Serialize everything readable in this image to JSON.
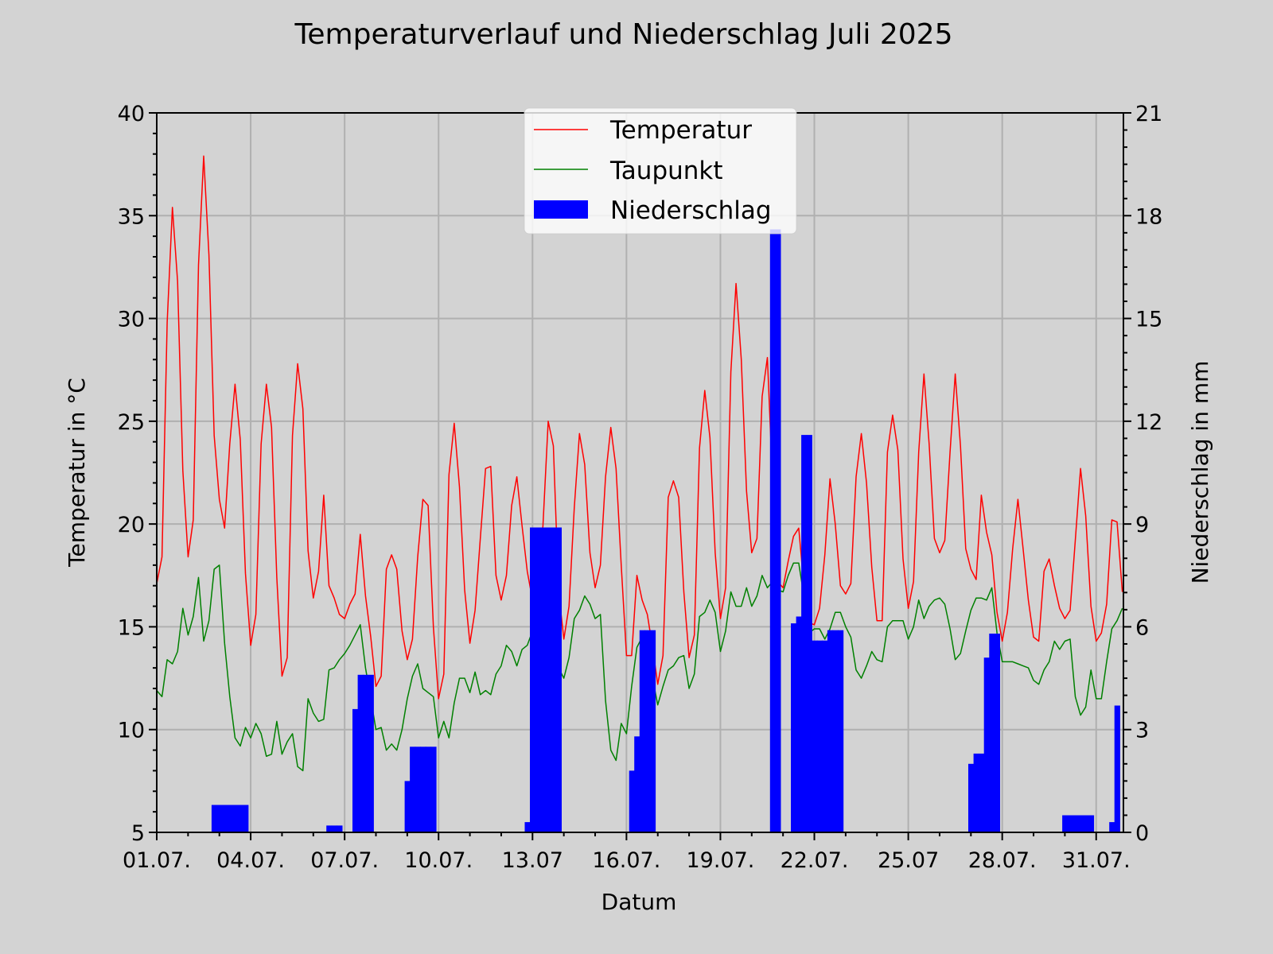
{
  "chart_data": {
    "type": "line+bar",
    "title": "Temperaturverlauf und Niederschlag Juli 2025",
    "xlabel": "Datum",
    "ylabel_left": "Temperatur in °C",
    "ylabel_right": "Niederschlag in mm",
    "x_unit": "days since 01.07.2025 00:00",
    "sample_interval_hours": 4,
    "xlim": [
      0,
      30.87
    ],
    "ylim_left": [
      5,
      40
    ],
    "ylim_right": [
      0,
      21
    ],
    "yticks_left": [
      5,
      10,
      15,
      20,
      25,
      30,
      35,
      40
    ],
    "yticks_right": [
      0,
      3,
      6,
      9,
      12,
      15,
      18,
      21
    ],
    "xticks": [
      {
        "day": 0,
        "label": "01.07."
      },
      {
        "day": 3,
        "label": "04.07."
      },
      {
        "day": 6,
        "label": "07.07."
      },
      {
        "day": 9,
        "label": "10.07."
      },
      {
        "day": 12,
        "label": "13.07"
      },
      {
        "day": 15,
        "label": "16.07."
      },
      {
        "day": 18,
        "label": "19.07."
      },
      {
        "day": 21,
        "label": "22.07."
      },
      {
        "day": 24,
        "label": "25.07"
      },
      {
        "day": 27,
        "label": "28.07."
      },
      {
        "day": 30,
        "label": "31.07."
      }
    ],
    "grid": true,
    "legend_position": "top-center",
    "colors": {
      "temperature": "#ff0000",
      "dewpoint": "#008000",
      "precipitation": "#0000ff",
      "background": "#d3d3d3",
      "grid": "#b0b0b0"
    },
    "series": [
      {
        "name": "Temperatur",
        "axis": "left",
        "kind": "line",
        "values": [
          17.1,
          18.4,
          29.8,
          35.4,
          31.8,
          22.6,
          18.4,
          20.2,
          32.6,
          37.9,
          33.1,
          24.3,
          21.2,
          19.8,
          23.9,
          26.8,
          24.1,
          17.6,
          14.1,
          15.6,
          23.9,
          26.8,
          24.7,
          17.4,
          12.6,
          13.5,
          24.3,
          27.8,
          25.6,
          18.7,
          16.4,
          17.7,
          21.4,
          17.0,
          16.4,
          15.6,
          15.4,
          16.1,
          16.6,
          19.5,
          16.5,
          14.5,
          12.1,
          12.6,
          17.8,
          18.5,
          17.8,
          14.8,
          13.4,
          14.4,
          18.4,
          21.2,
          20.9,
          15.0,
          11.5,
          12.7,
          22.4,
          24.9,
          21.8,
          16.8,
          14.2,
          15.8,
          19.3,
          22.7,
          22.8,
          17.5,
          16.3,
          17.5,
          20.9,
          22.3,
          19.9,
          17.7,
          16.3,
          17.5,
          19.9,
          25.0,
          23.8,
          16.7,
          14.4,
          16.0,
          20.8,
          24.4,
          22.9,
          18.6,
          16.9,
          18.0,
          22.3,
          24.7,
          22.7,
          18.0,
          13.6,
          13.6,
          17.5,
          16.3,
          15.6,
          14.0,
          12.2,
          13.6,
          21.3,
          22.1,
          21.3,
          16.7,
          13.5,
          14.6,
          23.7,
          26.5,
          24.2,
          18.6,
          15.4,
          16.9,
          27.4,
          31.7,
          28.0,
          21.6,
          18.6,
          19.3,
          26.2,
          28.1,
          22.0,
          17.2,
          16.9,
          18.2,
          19.4,
          19.8,
          17.0,
          15.2,
          15.1,
          15.9,
          18.5,
          22.2,
          20.0,
          17.0,
          16.6,
          17.1,
          22.3,
          24.4,
          22.0,
          17.9,
          15.3,
          15.3,
          23.5,
          25.3,
          23.6,
          18.3,
          15.9,
          17.2,
          23.5,
          27.3,
          23.9,
          19.3,
          18.6,
          19.2,
          23.5,
          27.3,
          23.8,
          18.8,
          17.8,
          17.3,
          21.4,
          19.6,
          18.5,
          15.7,
          14.3,
          15.7,
          18.8,
          21.2,
          18.8,
          16.3,
          14.5,
          14.3,
          17.7,
          18.3,
          17.0,
          15.9,
          15.4,
          15.8,
          19.2,
          22.7,
          20.4,
          16.0,
          14.3,
          14.7,
          16.1,
          20.2,
          20.1,
          16.7
        ]
      },
      {
        "name": "Taupunkt",
        "axis": "left",
        "kind": "line",
        "values": [
          11.9,
          11.6,
          13.4,
          13.2,
          13.8,
          15.9,
          14.6,
          15.5,
          17.4,
          14.3,
          15.3,
          17.8,
          18.0,
          14.2,
          11.6,
          9.6,
          9.2,
          10.1,
          9.6,
          10.3,
          9.8,
          8.7,
          8.8,
          10.4,
          8.8,
          9.4,
          9.8,
          8.2,
          8.0,
          11.5,
          10.8,
          10.4,
          10.5,
          12.9,
          13.0,
          13.4,
          13.7,
          14.1,
          14.6,
          15.1,
          13.0,
          11.5,
          10.0,
          10.1,
          9.0,
          9.3,
          9.0,
          10.0,
          11.5,
          12.6,
          13.2,
          12.0,
          11.8,
          11.6,
          9.6,
          10.4,
          9.6,
          11.3,
          12.5,
          12.5,
          11.8,
          12.8,
          11.7,
          11.9,
          11.7,
          12.7,
          13.1,
          14.1,
          13.8,
          13.1,
          13.9,
          14.1,
          14.8,
          15.5,
          16.5,
          15.0,
          14.0,
          13.0,
          12.5,
          13.5,
          15.4,
          15.8,
          16.5,
          16.1,
          15.4,
          15.6,
          11.4,
          9.0,
          8.5,
          10.3,
          9.8,
          12.1,
          14.0,
          14.5,
          14.0,
          12.5,
          11.2,
          12.1,
          12.9,
          13.1,
          13.5,
          13.6,
          12.0,
          12.7,
          15.5,
          15.7,
          16.3,
          15.7,
          13.8,
          14.8,
          16.7,
          16.0,
          16.0,
          16.9,
          16.0,
          16.5,
          17.5,
          16.9,
          17.2,
          16.8,
          16.7,
          17.5,
          18.1,
          18.1,
          16.5,
          14.7,
          14.9,
          14.9,
          14.4,
          14.9,
          15.7,
          15.7,
          15.0,
          14.5,
          12.9,
          12.5,
          13.1,
          13.8,
          13.4,
          13.3,
          15.0,
          15.3,
          15.3,
          15.3,
          14.4,
          15.0,
          16.3,
          15.4,
          16.0,
          16.3,
          16.4,
          16.1,
          14.9,
          13.4,
          13.7,
          14.8,
          15.8,
          16.4,
          16.4,
          16.3,
          16.9,
          14.7,
          13.3,
          13.3,
          13.3,
          13.2,
          13.1,
          13.0,
          12.4,
          12.2,
          12.9,
          13.3,
          14.3,
          13.9,
          14.3,
          14.4,
          11.6,
          10.7,
          11.1,
          12.9,
          11.5,
          11.5,
          13.3,
          14.9,
          15.3,
          15.9
        ]
      },
      {
        "name": "Niederschlag",
        "axis": "right",
        "kind": "bar",
        "bars": [
          {
            "i": 11,
            "v": 0.8
          },
          {
            "i": 12,
            "v": 0.8
          },
          {
            "i": 13,
            "v": 0.8
          },
          {
            "i": 14,
            "v": 0.8
          },
          {
            "i": 15,
            "v": 0.8
          },
          {
            "i": 16,
            "v": 0.8
          },
          {
            "i": 17,
            "v": 0.8
          },
          {
            "i": 33,
            "v": 0.2
          },
          {
            "i": 34,
            "v": 0.2
          },
          {
            "i": 35,
            "v": 0.2
          },
          {
            "i": 38,
            "v": 3.6
          },
          {
            "i": 39,
            "v": 4.6
          },
          {
            "i": 40,
            "v": 4.6
          },
          {
            "i": 41,
            "v": 4.6
          },
          {
            "i": 48,
            "v": 1.5
          },
          {
            "i": 49,
            "v": 2.5
          },
          {
            "i": 50,
            "v": 2.5
          },
          {
            "i": 51,
            "v": 2.5
          },
          {
            "i": 52,
            "v": 2.5
          },
          {
            "i": 53,
            "v": 2.5
          },
          {
            "i": 71,
            "v": 0.3
          },
          {
            "i": 72,
            "v": 8.9
          },
          {
            "i": 73,
            "v": 8.9
          },
          {
            "i": 74,
            "v": 8.9
          },
          {
            "i": 75,
            "v": 8.9
          },
          {
            "i": 76,
            "v": 8.9
          },
          {
            "i": 77,
            "v": 8.9
          },
          {
            "i": 91,
            "v": 1.8
          },
          {
            "i": 92,
            "v": 2.8
          },
          {
            "i": 93,
            "v": 5.9
          },
          {
            "i": 94,
            "v": 5.9
          },
          {
            "i": 95,
            "v": 5.9
          },
          {
            "i": 118,
            "v": 17.6
          },
          {
            "i": 119,
            "v": 17.6
          },
          {
            "i": 122,
            "v": 6.1
          },
          {
            "i": 123,
            "v": 6.3
          },
          {
            "i": 124,
            "v": 11.6
          },
          {
            "i": 125,
            "v": 11.6
          },
          {
            "i": 126,
            "v": 5.6
          },
          {
            "i": 127,
            "v": 5.6
          },
          {
            "i": 128,
            "v": 5.6
          },
          {
            "i": 129,
            "v": 5.9
          },
          {
            "i": 130,
            "v": 5.9
          },
          {
            "i": 131,
            "v": 5.9
          },
          {
            "i": 156,
            "v": 2.0
          },
          {
            "i": 157,
            "v": 2.3
          },
          {
            "i": 158,
            "v": 2.3
          },
          {
            "i": 159,
            "v": 5.1
          },
          {
            "i": 160,
            "v": 5.8
          },
          {
            "i": 161,
            "v": 5.8
          },
          {
            "i": 174,
            "v": 0.5
          },
          {
            "i": 175,
            "v": 0.5
          },
          {
            "i": 176,
            "v": 0.5
          },
          {
            "i": 177,
            "v": 0.5
          },
          {
            "i": 178,
            "v": 0.5
          },
          {
            "i": 179,
            "v": 0.5
          },
          {
            "i": 183,
            "v": 0.3
          },
          {
            "i": 184,
            "v": 3.7
          }
        ]
      }
    ]
  }
}
